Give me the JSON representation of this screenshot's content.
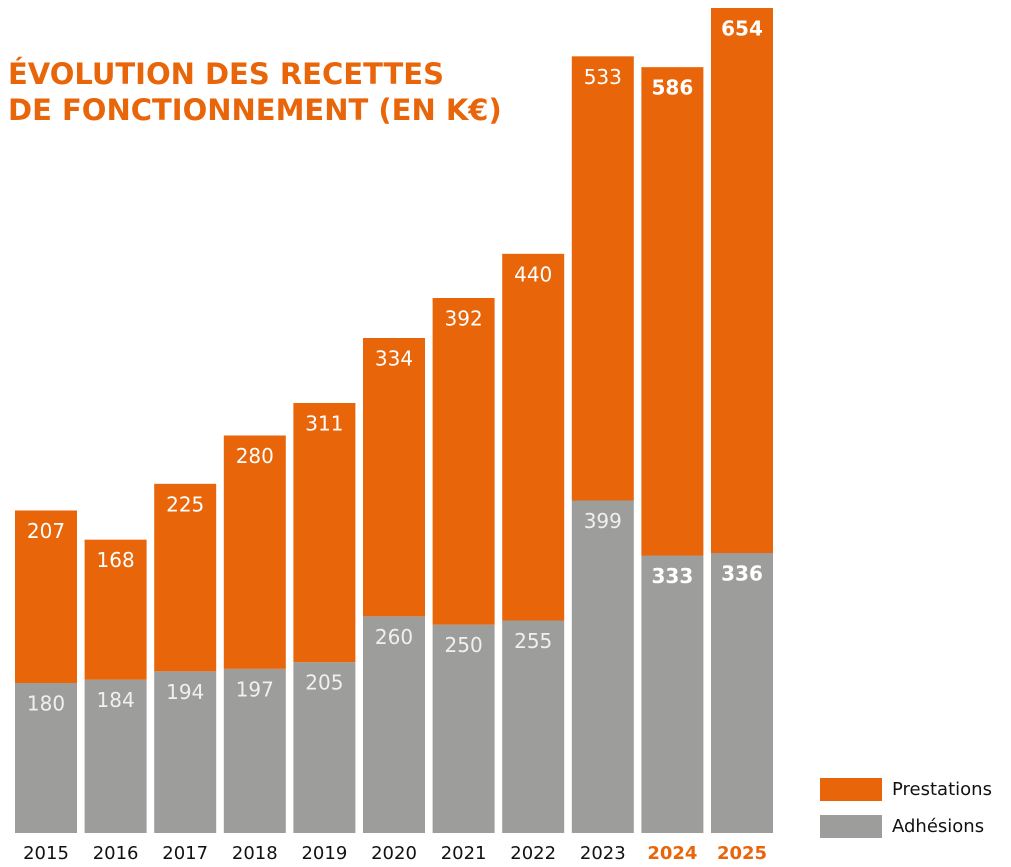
{
  "chart_data": {
    "type": "stacked_bar",
    "title": [
      "ÉVOLUTION DES RECETTES",
      "DE FONCTIONNEMENT (EN K€)"
    ],
    "categories": [
      "2015",
      "2016",
      "2017",
      "2018",
      "2019",
      "2020",
      "2021",
      "2022",
      "2023",
      "2024",
      "2025"
    ],
    "highlight": [
      false,
      false,
      false,
      false,
      false,
      false,
      false,
      false,
      false,
      true,
      true
    ],
    "series": [
      {
        "name": "Adhésions",
        "color": "#9d9d9c",
        "values": [
          180,
          184,
          194,
          197,
          205,
          260,
          250,
          255,
          399,
          333,
          336
        ]
      },
      {
        "name": "Prestations",
        "color": "#e8650a",
        "values": [
          207,
          168,
          225,
          280,
          311,
          334,
          392,
          440,
          533,
          586,
          654
        ]
      }
    ],
    "legend": "bottom-right"
  }
}
